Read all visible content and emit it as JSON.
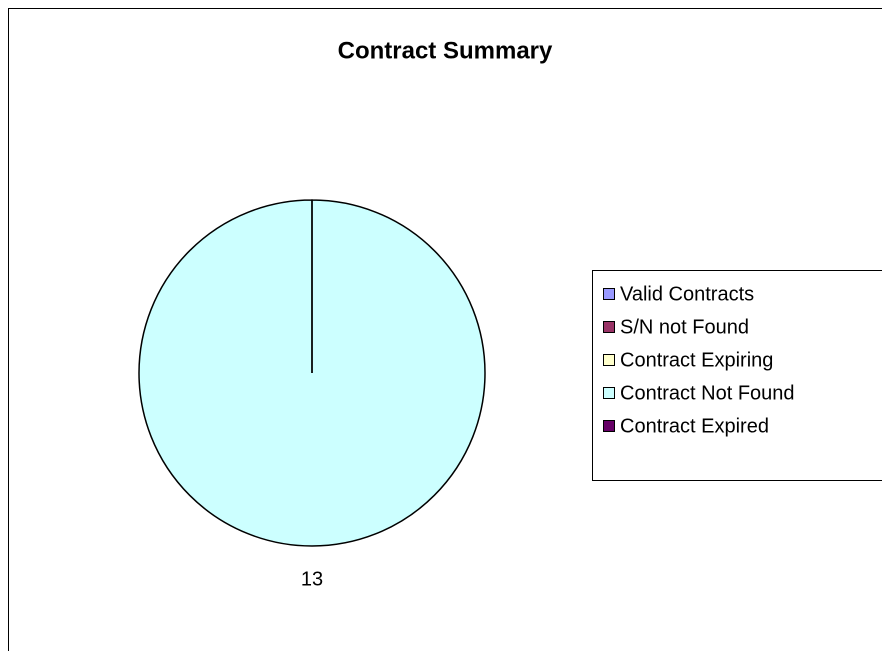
{
  "chart_data": {
    "type": "pie",
    "title": "Contract Summary",
    "categories": [
      "Valid Contracts",
      "S/N not Found",
      "Contract Expiring",
      "Contract Not Found",
      "Contract Expired"
    ],
    "values": [
      0,
      0,
      0,
      13,
      0
    ],
    "colors": [
      "#9999ff",
      "#993366",
      "#ffffcc",
      "#ccffff",
      "#660066"
    ],
    "legend": "right"
  }
}
